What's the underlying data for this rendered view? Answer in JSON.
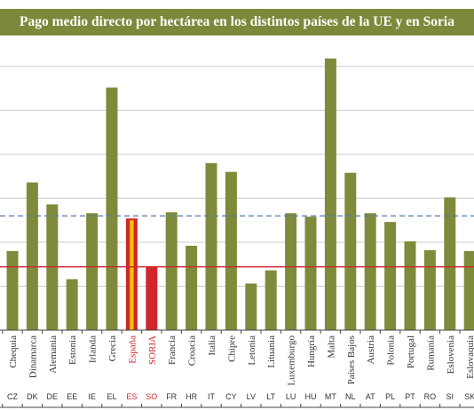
{
  "title": "Pago medio directo por hectárea en los distintos países de la UE y en Soria",
  "colors": {
    "bar": "#7f8b3b",
    "highlight_label": "#d0262c",
    "soria_bar": "#d0262c",
    "spain_yellow": "#f2c400",
    "eu_avg_line": "#5577aa",
    "soria_line": "#d0262c",
    "title_bg": "#7a8a3a"
  },
  "chart_data": {
    "type": "bar",
    "title": "Pago medio directo por hectárea en los distintos países de la UE y en Soria",
    "categories": [
      "Chequia",
      "Dinamarca",
      "Alemania",
      "Estonia",
      "Irlanda",
      "Grecia",
      "España",
      "SORIA",
      "Francia",
      "Croacia",
      "Italia",
      "Chipre",
      "Letonia",
      "Lituania",
      "Luxemburgo",
      "Hungría",
      "Malta",
      "Países Bajos",
      "Austria",
      "Polonia",
      "Portugal",
      "Rumanía",
      "Eslovenia",
      "Eslovaquia"
    ],
    "codes": [
      "CZ",
      "DK",
      "DE",
      "EE",
      "IE",
      "EL",
      "ES",
      "SO",
      "FR",
      "HR",
      "IT",
      "CY",
      "LV",
      "LT",
      "LU",
      "HU",
      "MT",
      "NL",
      "AT",
      "PL",
      "PT",
      "RO",
      "SI",
      "SK"
    ],
    "values": [
      90,
      168,
      143,
      58,
      133,
      276,
      127,
      72,
      134,
      96,
      190,
      180,
      53,
      68,
      133,
      129,
      309,
      179,
      133,
      123,
      101,
      91,
      151,
      90
    ],
    "highlighted": [
      "ES",
      "SO"
    ],
    "reference_lines": [
      {
        "kind": "dashed",
        "value": 130
      },
      {
        "kind": "solid",
        "value": 72
      }
    ],
    "ylim": [
      0,
      320
    ],
    "yticks": [
      0,
      50,
      100,
      150,
      200,
      250,
      300
    ],
    "grid": true,
    "y_tick_labels_visible": false
  }
}
